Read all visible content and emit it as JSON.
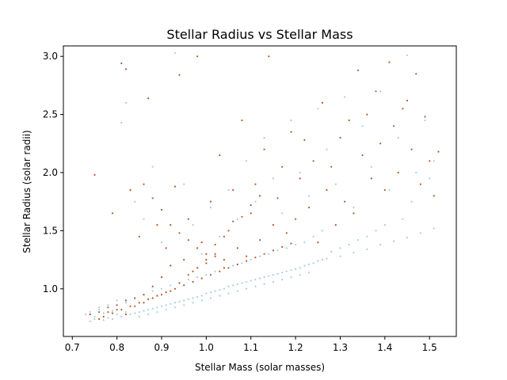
{
  "chart_data": {
    "type": "scatter",
    "title": "Stellar Radius vs Stellar Mass",
    "xlabel": "Stellar Mass (solar masses)",
    "ylabel": "Stellar Radius (solar radii)",
    "xlim": [
      0.68,
      1.56
    ],
    "ylim": [
      0.59,
      3.09
    ],
    "xticks": [
      0.7,
      0.8,
      0.9,
      1.0,
      1.1,
      1.2,
      1.3,
      1.4,
      1.5
    ],
    "xtick_labels": [
      "0.7",
      "0.8",
      "0.9",
      "1.0",
      "1.1",
      "1.2",
      "1.3",
      "1.4",
      "1.5"
    ],
    "yticks": [
      1.0,
      1.5,
      2.0,
      2.5,
      3.0
    ],
    "ytick_labels": [
      "1.0",
      "1.5",
      "2.0",
      "2.5",
      "3.0"
    ],
    "grid": false,
    "legend": "none",
    "series": [
      {
        "name": "light blue points",
        "color": "#a6cee3",
        "points": [
          [
            0.73,
            0.78
          ],
          [
            0.74,
            0.8
          ],
          [
            0.75,
            0.76
          ],
          [
            0.76,
            0.82
          ],
          [
            0.77,
            0.79
          ],
          [
            0.78,
            0.75
          ],
          [
            0.79,
            0.81
          ],
          [
            0.8,
            0.78
          ],
          [
            0.81,
            0.76
          ],
          [
            0.82,
            0.8
          ],
          [
            0.83,
            0.78
          ],
          [
            0.84,
            0.79
          ],
          [
            0.85,
            0.8
          ],
          [
            0.86,
            0.81
          ],
          [
            0.87,
            0.82
          ],
          [
            0.88,
            0.83
          ],
          [
            0.89,
            0.84
          ],
          [
            0.9,
            0.85
          ],
          [
            0.91,
            0.86
          ],
          [
            0.92,
            0.87
          ],
          [
            0.93,
            0.88
          ],
          [
            0.94,
            0.89
          ],
          [
            0.95,
            0.9
          ],
          [
            0.96,
            0.91
          ],
          [
            0.97,
            0.92
          ],
          [
            0.98,
            0.93
          ],
          [
            0.99,
            0.94
          ],
          [
            1.0,
            0.96
          ],
          [
            1.01,
            0.97
          ],
          [
            1.02,
            0.98
          ],
          [
            1.03,
            0.99
          ],
          [
            1.04,
            1.0
          ],
          [
            1.05,
            1.02
          ],
          [
            1.06,
            1.03
          ],
          [
            1.07,
            1.04
          ],
          [
            1.08,
            1.05
          ],
          [
            1.09,
            1.06
          ],
          [
            1.1,
            1.07
          ],
          [
            1.11,
            1.08
          ],
          [
            1.12,
            1.09
          ],
          [
            1.13,
            1.1
          ],
          [
            1.14,
            1.11
          ],
          [
            1.15,
            1.12
          ],
          [
            1.16,
            1.13
          ],
          [
            1.17,
            1.14
          ],
          [
            1.18,
            1.15
          ],
          [
            1.19,
            1.16
          ],
          [
            1.2,
            1.17
          ],
          [
            1.21,
            1.18
          ],
          [
            1.22,
            1.2
          ],
          [
            1.23,
            1.21
          ],
          [
            1.24,
            1.22
          ],
          [
            1.25,
            1.24
          ],
          [
            1.26,
            1.25
          ],
          [
            1.27,
            1.26
          ],
          [
            1.3,
            1.28
          ],
          [
            1.33,
            1.31
          ],
          [
            1.36,
            1.34
          ],
          [
            1.39,
            1.38
          ],
          [
            1.42,
            1.41
          ],
          [
            1.45,
            1.44
          ],
          [
            1.48,
            1.48
          ],
          [
            1.51,
            1.52
          ],
          [
            0.74,
            0.72
          ],
          [
            0.76,
            0.84
          ],
          [
            0.78,
            0.86
          ],
          [
            0.8,
            0.9
          ],
          [
            0.82,
            0.88
          ],
          [
            0.84,
            0.92
          ],
          [
            0.86,
            0.95
          ],
          [
            0.88,
            0.98
          ],
          [
            0.9,
            1.0
          ],
          [
            0.92,
            1.03
          ],
          [
            0.94,
            1.05
          ],
          [
            0.96,
            1.08
          ],
          [
            0.98,
            1.1
          ],
          [
            1.0,
            1.12
          ],
          [
            1.02,
            1.15
          ],
          [
            1.04,
            1.18
          ],
          [
            1.06,
            1.2
          ],
          [
            1.08,
            1.22
          ],
          [
            1.1,
            1.25
          ],
          [
            1.12,
            1.28
          ],
          [
            1.14,
            1.3
          ],
          [
            1.16,
            1.33
          ],
          [
            1.18,
            1.35
          ],
          [
            1.2,
            1.38
          ],
          [
            1.22,
            1.4
          ],
          [
            1.24,
            1.45
          ],
          [
            1.26,
            1.5
          ],
          [
            0.81,
            2.43
          ],
          [
            0.82,
            2.6
          ],
          [
            0.84,
            1.75
          ],
          [
            0.86,
            1.6
          ],
          [
            0.88,
            2.05
          ],
          [
            0.9,
            1.4
          ],
          [
            0.92,
            1.2
          ],
          [
            0.93,
            3.03
          ],
          [
            0.95,
            1.9
          ],
          [
            0.97,
            1.55
          ],
          [
            0.99,
            1.3
          ],
          [
            1.01,
            1.7
          ],
          [
            1.03,
            1.45
          ],
          [
            1.05,
            1.85
          ],
          [
            1.07,
            1.6
          ],
          [
            1.09,
            2.1
          ],
          [
            1.11,
            1.75
          ],
          [
            1.13,
            2.3
          ],
          [
            1.15,
            1.95
          ],
          [
            1.17,
            1.65
          ],
          [
            1.19,
            2.45
          ],
          [
            1.21,
            2.0
          ],
          [
            1.23,
            1.8
          ],
          [
            1.25,
            2.55
          ],
          [
            1.27,
            2.2
          ],
          [
            1.29,
            1.9
          ],
          [
            1.31,
            2.65
          ],
          [
            1.33,
            1.7
          ],
          [
            1.35,
            2.4
          ],
          [
            1.37,
            2.05
          ],
          [
            1.39,
            2.7
          ],
          [
            1.41,
            1.85
          ],
          [
            1.43,
            2.3
          ],
          [
            1.45,
            3.01
          ],
          [
            1.47,
            2.0
          ],
          [
            1.49,
            2.45
          ],
          [
            1.5,
            1.95
          ],
          [
            1.51,
            2.1
          ],
          [
            1.46,
            1.75
          ],
          [
            1.44,
            1.6
          ],
          [
            1.4,
            1.55
          ],
          [
            1.38,
            1.5
          ],
          [
            1.36,
            1.45
          ],
          [
            1.34,
            1.42
          ],
          [
            1.32,
            1.38
          ],
          [
            1.3,
            1.35
          ],
          [
            1.28,
            1.32
          ],
          [
            0.79,
            0.74
          ],
          [
            0.77,
            0.73
          ],
          [
            0.75,
            0.74
          ],
          [
            0.85,
            0.76
          ],
          [
            0.87,
            0.78
          ],
          [
            0.89,
            0.8
          ],
          [
            0.91,
            0.82
          ],
          [
            0.93,
            0.84
          ],
          [
            0.95,
            0.86
          ],
          [
            0.97,
            0.88
          ],
          [
            0.99,
            0.9
          ],
          [
            1.01,
            0.92
          ],
          [
            1.03,
            0.94
          ],
          [
            1.05,
            0.96
          ],
          [
            1.07,
            0.98
          ],
          [
            1.09,
            1.0
          ],
          [
            1.11,
            1.02
          ],
          [
            1.13,
            1.04
          ],
          [
            1.15,
            1.06
          ],
          [
            1.17,
            1.08
          ],
          [
            1.19,
            1.1
          ],
          [
            1.21,
            1.12
          ],
          [
            1.23,
            1.14
          ]
        ]
      },
      {
        "name": "brown points",
        "color": "#b15928",
        "points": [
          [
            0.75,
            1.98
          ],
          [
            0.76,
            0.8
          ],
          [
            0.78,
            0.84
          ],
          [
            0.79,
            1.65
          ],
          [
            0.8,
            0.86
          ],
          [
            0.81,
            2.94
          ],
          [
            0.82,
            2.89
          ],
          [
            0.82,
            0.9
          ],
          [
            0.83,
            1.85
          ],
          [
            0.84,
            0.92
          ],
          [
            0.85,
            1.45
          ],
          [
            0.86,
            0.95
          ],
          [
            0.87,
            2.64
          ],
          [
            0.88,
            1.02
          ],
          [
            0.89,
            1.55
          ],
          [
            0.9,
            1.1
          ],
          [
            0.91,
            1.35
          ],
          [
            0.92,
            1.2
          ],
          [
            0.93,
            1.88
          ],
          [
            0.94,
            2.84
          ],
          [
            0.95,
            1.25
          ],
          [
            0.96,
            1.6
          ],
          [
            0.97,
            1.15
          ],
          [
            0.98,
            3.0
          ],
          [
            0.99,
            1.4
          ],
          [
            1.0,
            1.22
          ],
          [
            1.01,
            1.75
          ],
          [
            1.02,
            1.3
          ],
          [
            1.03,
            2.15
          ],
          [
            1.04,
            1.18
          ],
          [
            1.05,
            1.5
          ],
          [
            1.06,
            1.85
          ],
          [
            1.07,
            1.35
          ],
          [
            1.08,
            2.45
          ],
          [
            1.09,
            1.28
          ],
          [
            1.1,
            1.65
          ],
          [
            1.11,
            1.9
          ],
          [
            1.12,
            1.42
          ],
          [
            1.13,
            2.2
          ],
          [
            1.14,
            3.0
          ],
          [
            1.15,
            1.55
          ],
          [
            1.16,
            1.78
          ],
          [
            1.17,
            2.05
          ],
          [
            1.18,
            1.48
          ],
          [
            1.19,
            2.35
          ],
          [
            1.2,
            1.6
          ],
          [
            1.21,
            1.95
          ],
          [
            1.22,
            2.28
          ],
          [
            1.23,
            1.7
          ],
          [
            1.24,
            2.1
          ],
          [
            1.25,
            1.4
          ],
          [
            1.26,
            2.6
          ],
          [
            1.27,
            1.85
          ],
          [
            1.28,
            2.05
          ],
          [
            1.29,
            1.55
          ],
          [
            1.3,
            2.3
          ],
          [
            1.31,
            1.75
          ],
          [
            1.32,
            2.45
          ],
          [
            1.33,
            1.65
          ],
          [
            1.34,
            2.88
          ],
          [
            1.35,
            2.15
          ],
          [
            1.36,
            2.5
          ],
          [
            1.37,
            1.95
          ],
          [
            1.38,
            2.7
          ],
          [
            1.39,
            2.25
          ],
          [
            1.4,
            1.85
          ],
          [
            1.41,
            2.95
          ],
          [
            1.42,
            2.4
          ],
          [
            1.43,
            2.0
          ],
          [
            1.44,
            2.55
          ],
          [
            1.45,
            2.62
          ],
          [
            1.46,
            2.2
          ],
          [
            1.47,
            2.85
          ],
          [
            1.48,
            1.9
          ],
          [
            1.49,
            2.48
          ],
          [
            1.5,
            2.1
          ],
          [
            1.51,
            1.8
          ],
          [
            1.52,
            2.18
          ],
          [
            0.77,
            0.76
          ],
          [
            0.79,
            0.79
          ],
          [
            0.81,
            0.82
          ],
          [
            0.83,
            0.85
          ],
          [
            0.85,
            0.88
          ],
          [
            0.87,
            0.91
          ],
          [
            0.89,
            0.94
          ],
          [
            0.91,
            0.97
          ],
          [
            0.93,
            1.0
          ],
          [
            0.95,
            1.03
          ],
          [
            0.97,
            1.06
          ],
          [
            0.99,
            1.09
          ],
          [
            1.01,
            1.12
          ],
          [
            1.03,
            1.15
          ],
          [
            1.05,
            1.18
          ],
          [
            1.07,
            1.21
          ],
          [
            1.09,
            1.24
          ],
          [
            1.11,
            1.27
          ],
          [
            1.13,
            1.3
          ],
          [
            1.15,
            1.33
          ],
          [
            1.17,
            1.36
          ],
          [
            1.19,
            1.39
          ],
          [
            0.74,
            0.78
          ],
          [
            0.76,
            0.74
          ],
          [
            0.78,
            0.8
          ],
          [
            0.8,
            0.82
          ],
          [
            0.82,
            0.78
          ],
          [
            0.84,
            0.85
          ],
          [
            0.86,
            0.88
          ],
          [
            0.88,
            0.92
          ],
          [
            0.9,
            0.95
          ],
          [
            0.92,
            0.98
          ],
          [
            0.94,
            1.05
          ],
          [
            0.96,
            1.12
          ],
          [
            0.98,
            1.18
          ],
          [
            1.0,
            1.25
          ],
          [
            1.02,
            1.38
          ],
          [
            1.04,
            1.45
          ],
          [
            1.06,
            1.58
          ],
          [
            1.08,
            1.62
          ],
          [
            1.1,
            1.72
          ],
          [
            1.12,
            1.8
          ],
          [
            0.86,
            1.9
          ],
          [
            0.88,
            1.78
          ],
          [
            0.9,
            1.68
          ],
          [
            0.92,
            1.55
          ],
          [
            0.94,
            1.48
          ],
          [
            0.96,
            1.42
          ],
          [
            0.98,
            1.35
          ],
          [
            1.0,
            1.3
          ],
          [
            1.02,
            1.28
          ],
          [
            1.04,
            1.25
          ]
        ]
      }
    ]
  }
}
